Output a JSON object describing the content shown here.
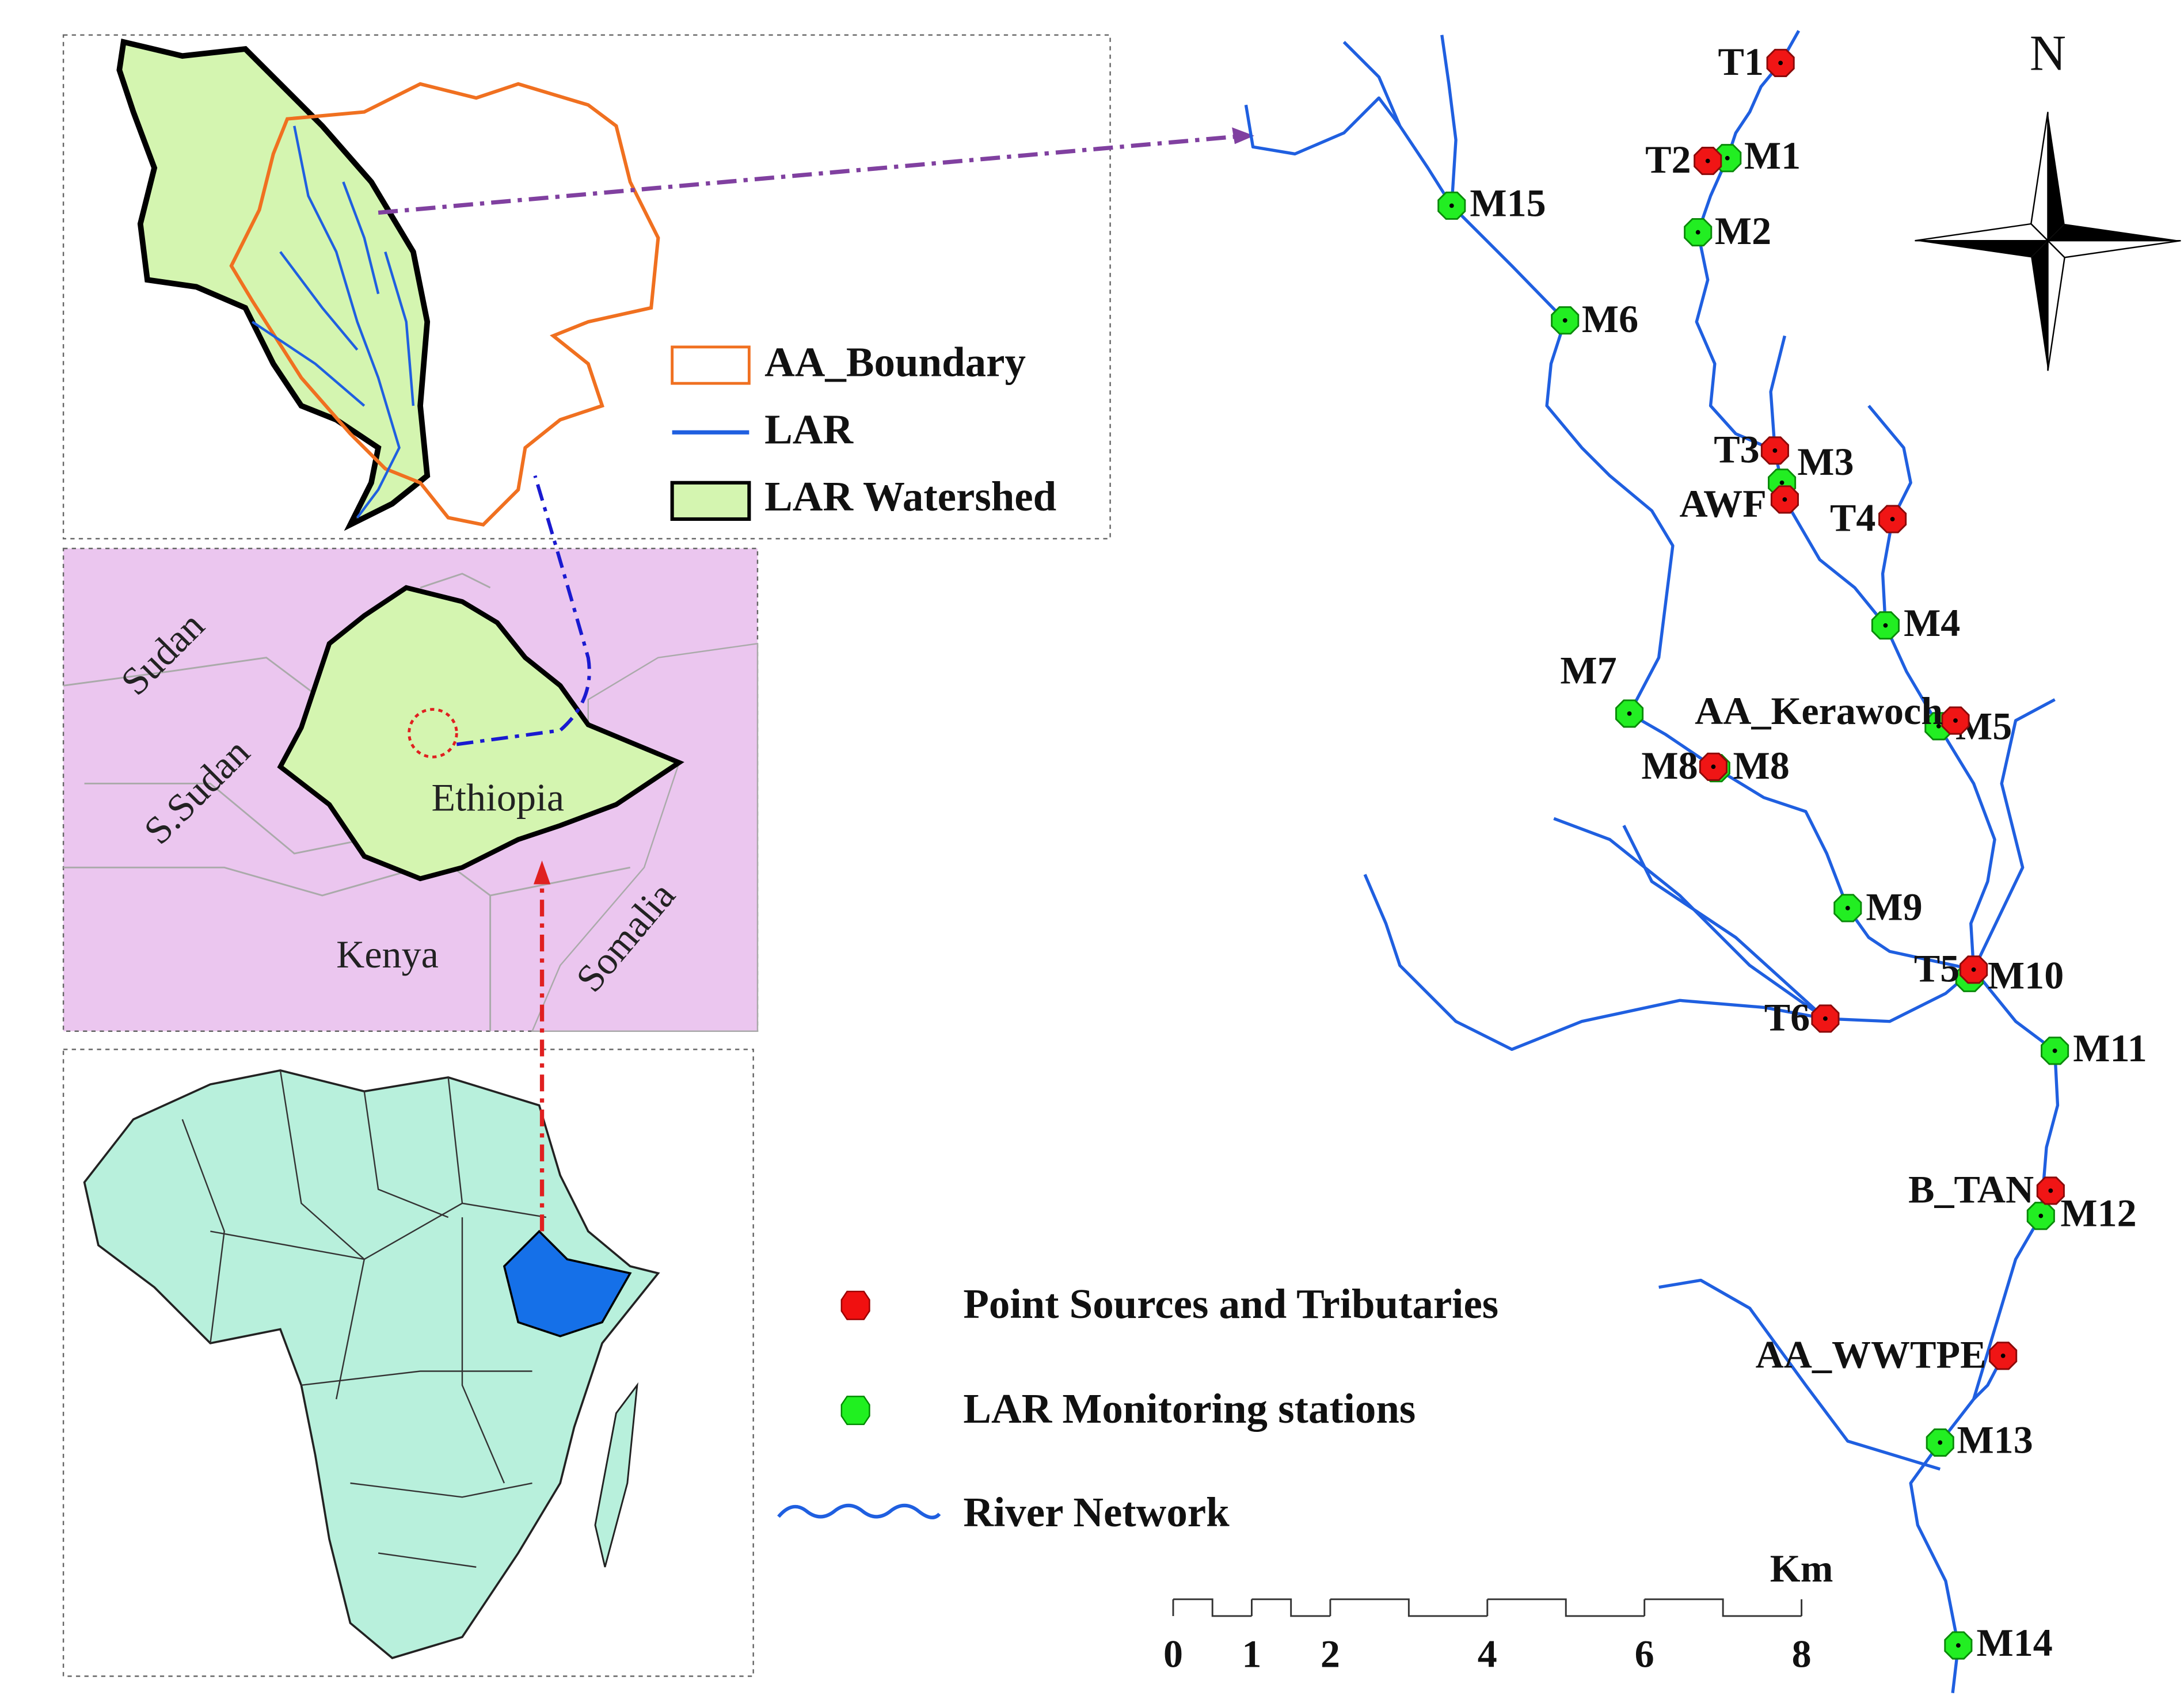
{
  "inset_legend": {
    "items": [
      "AA_Boundary",
      "LAR",
      "LAR Watershed"
    ]
  },
  "countries": [
    "Sudan",
    "S.Sudan",
    "Ethiopia",
    "Kenya",
    "Somalia"
  ],
  "north": "N",
  "point_sources": [
    "T1",
    "T2",
    "T3",
    "AWF",
    "T4",
    "AA_Kerawoch",
    "M8",
    "T5",
    "T6",
    "B_TAN",
    "AA_WWTPE"
  ],
  "monitoring_stations": [
    "M1",
    "M15",
    "M2",
    "M6",
    "M3",
    "M4",
    "M7",
    "M5",
    "M8",
    "M9",
    "M10",
    "M11",
    "M12",
    "M13",
    "M14"
  ],
  "legend": {
    "items": [
      "Point Sources and Tributaries",
      "LAR Monitoring stations",
      "River Network"
    ]
  },
  "scale": {
    "unit": "Km",
    "ticks": [
      0,
      1,
      2,
      4,
      6,
      8
    ]
  }
}
